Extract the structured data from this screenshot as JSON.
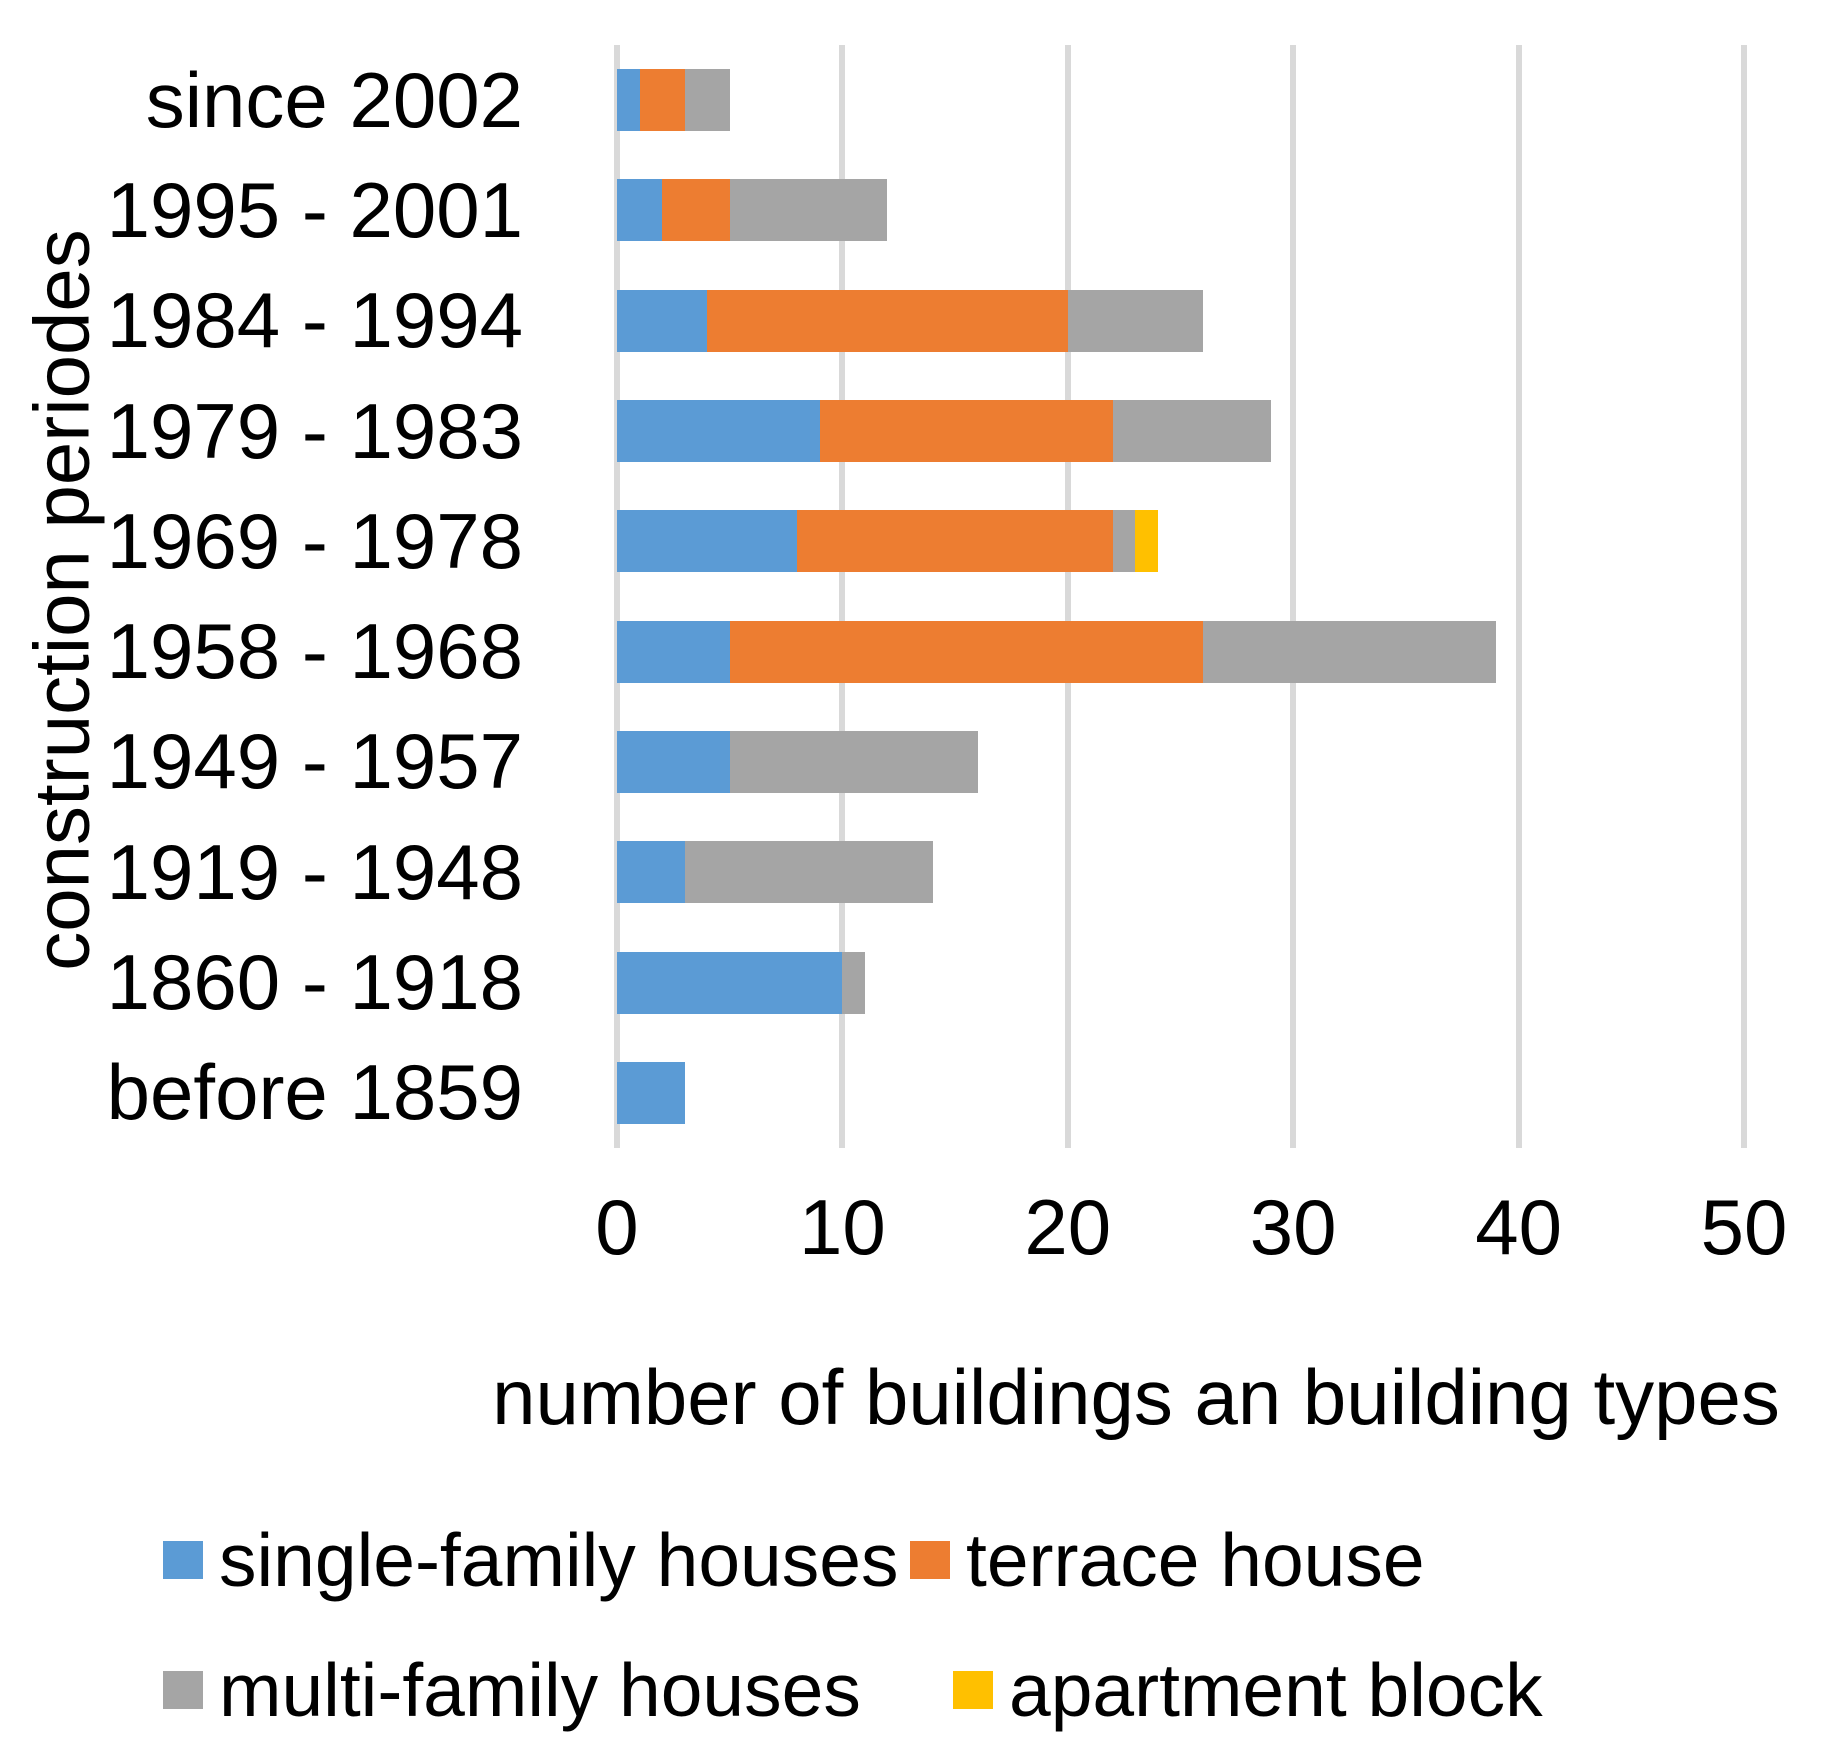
{
  "chart_data": {
    "type": "bar",
    "orientation": "horizontal-stacked",
    "title": "",
    "xlabel": "number of buildings an building types",
    "ylabel": "construction periodes",
    "xlim": [
      0,
      50
    ],
    "xticks": [
      0,
      10,
      20,
      30,
      40,
      50
    ],
    "grid": true,
    "gridline_color": "#D9D9D9",
    "legend_position": "bottom",
    "categories": [
      "since 2002",
      "1995 - 2001",
      "1984 - 1994",
      "1979 - 1983",
      "1969 - 1978",
      "1958 - 1968",
      "1949 - 1957",
      "1919 - 1948",
      "1860 - 1918",
      "before 1859"
    ],
    "series": [
      {
        "name": "single-family houses",
        "color": "#5B9BD5",
        "values": [
          1,
          2,
          4,
          9,
          8,
          5,
          5,
          3,
          10,
          3
        ]
      },
      {
        "name": "terrace house",
        "color": "#ED7D31",
        "values": [
          2,
          3,
          16,
          13,
          14,
          21,
          0,
          0,
          0,
          0
        ]
      },
      {
        "name": "multi-family houses",
        "color": "#A5A5A5",
        "values": [
          2,
          7,
          6,
          7,
          1,
          13,
          11,
          11,
          1,
          0
        ]
      },
      {
        "name": "apartment block",
        "color": "#FFC000",
        "values": [
          0,
          0,
          0,
          0,
          1,
          0,
          0,
          0,
          0,
          0
        ]
      }
    ]
  }
}
